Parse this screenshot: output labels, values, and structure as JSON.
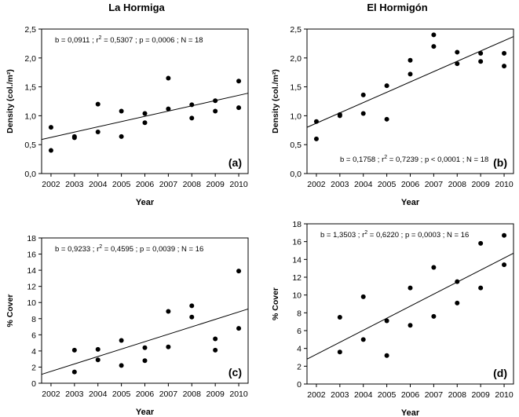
{
  "headers": {
    "left": "La Hormiga",
    "right": "El Hormigón"
  },
  "chart_data": [
    {
      "id": "a",
      "type": "scatter",
      "panel_label": "(a)",
      "xlabel": "Year",
      "ylabel": "Density (col./m²)",
      "xlim": [
        2001.6,
        2010.4
      ],
      "ylim": [
        0,
        2.5
      ],
      "xticks": [
        2002,
        2003,
        2004,
        2005,
        2006,
        2007,
        2008,
        2009,
        2010
      ],
      "yticks": [
        0,
        0.5,
        1.0,
        1.5,
        2.0,
        2.5
      ],
      "ytick_labels": [
        "0,0",
        "0,5",
        "1,0",
        "1,5",
        "2,0",
        "2,5"
      ],
      "annotation": {
        "pre": "b = 0,0911 ; r",
        "post": " = 0,5307 ; p = 0,0006 ; N = 18"
      },
      "annotation_pos": "top-left",
      "points": [
        [
          2002,
          0.8
        ],
        [
          2002,
          0.4
        ],
        [
          2003,
          0.64
        ],
        [
          2003,
          0.62
        ],
        [
          2004,
          1.2
        ],
        [
          2004,
          0.72
        ],
        [
          2005,
          1.08
        ],
        [
          2005,
          0.64
        ],
        [
          2006,
          1.04
        ],
        [
          2006,
          0.88
        ],
        [
          2007,
          1.65
        ],
        [
          2007,
          1.12
        ],
        [
          2008,
          1.19
        ],
        [
          2008,
          0.96
        ],
        [
          2009,
          1.26
        ],
        [
          2009,
          1.08
        ],
        [
          2010,
          1.6
        ],
        [
          2010,
          1.14
        ]
      ],
      "fit": {
        "x": [
          2001.6,
          2010.4
        ],
        "y": [
          0.59,
          1.39
        ]
      }
    },
    {
      "id": "b",
      "type": "scatter",
      "panel_label": "(b)",
      "xlabel": "Year",
      "ylabel": "Density (col./m²)",
      "xlim": [
        2001.6,
        2010.4
      ],
      "ylim": [
        0,
        2.5
      ],
      "xticks": [
        2002,
        2003,
        2004,
        2005,
        2006,
        2007,
        2008,
        2009,
        2010
      ],
      "yticks": [
        0,
        0.5,
        1.0,
        1.5,
        2.0,
        2.5
      ],
      "ytick_labels": [
        "0,0",
        "0,5",
        "1,0",
        "1,5",
        "2,0",
        "2,5"
      ],
      "annotation": {
        "pre": "b = 0,1758 ; r",
        "post": " = 0,7239 ; p < 0,0001 ; N = 18"
      },
      "annotation_pos": "bottom",
      "points": [
        [
          2002,
          0.9
        ],
        [
          2002,
          0.6
        ],
        [
          2003,
          1.02
        ],
        [
          2003,
          1.0
        ],
        [
          2004,
          1.36
        ],
        [
          2004,
          1.04
        ],
        [
          2005,
          1.52
        ],
        [
          2005,
          0.94
        ],
        [
          2006,
          1.96
        ],
        [
          2006,
          1.72
        ],
        [
          2007,
          2.4
        ],
        [
          2007,
          2.2
        ],
        [
          2008,
          2.1
        ],
        [
          2008,
          1.9
        ],
        [
          2009,
          2.08
        ],
        [
          2009,
          1.94
        ],
        [
          2010,
          2.08
        ],
        [
          2010,
          1.86
        ]
      ],
      "fit": {
        "x": [
          2001.6,
          2010.4
        ],
        "y": [
          0.8,
          2.37
        ]
      }
    },
    {
      "id": "c",
      "type": "scatter",
      "panel_label": "(c)",
      "xlabel": "Year",
      "ylabel": "% Cover",
      "xlim": [
        2001.6,
        2010.4
      ],
      "ylim": [
        0,
        18
      ],
      "xticks": [
        2002,
        2003,
        2004,
        2005,
        2006,
        2007,
        2008,
        2009,
        2010
      ],
      "yticks": [
        0,
        2,
        4,
        6,
        8,
        10,
        12,
        14,
        16,
        18
      ],
      "ytick_labels": [
        "0",
        "2",
        "4",
        "6",
        "8",
        "10",
        "12",
        "14",
        "16",
        "18"
      ],
      "annotation": {
        "pre": "b = 0,9233 ; r",
        "post": " = 0,4595 ; p = 0,0039 ; N = 16"
      },
      "annotation_pos": "top-left",
      "points": [
        [
          2003,
          4.1
        ],
        [
          2003,
          1.4
        ],
        [
          2004,
          4.2
        ],
        [
          2004,
          2.9
        ],
        [
          2005,
          5.3
        ],
        [
          2005,
          2.2
        ],
        [
          2006,
          4.4
        ],
        [
          2006,
          2.8
        ],
        [
          2007,
          8.9
        ],
        [
          2007,
          4.5
        ],
        [
          2008,
          9.6
        ],
        [
          2008,
          8.2
        ],
        [
          2009,
          5.5
        ],
        [
          2009,
          4.1
        ],
        [
          2010,
          13.9
        ],
        [
          2010,
          6.8
        ]
      ],
      "fit": {
        "x": [
          2001.6,
          2010.4
        ],
        "y": [
          1.1,
          9.2
        ]
      }
    },
    {
      "id": "d",
      "type": "scatter",
      "panel_label": "(d)",
      "xlabel": "Year",
      "ylabel": "% Cover",
      "xlim": [
        2001.6,
        2010.4
      ],
      "ylim": [
        0,
        18
      ],
      "xticks": [
        2002,
        2003,
        2004,
        2005,
        2006,
        2007,
        2008,
        2009,
        2010
      ],
      "yticks": [
        0,
        2,
        4,
        6,
        8,
        10,
        12,
        14,
        16,
        18
      ],
      "ytick_labels": [
        "0",
        "2",
        "4",
        "6",
        "8",
        "10",
        "12",
        "14",
        "16",
        "18"
      ],
      "annotation": {
        "pre": "b = 1,3503 ; r",
        "post": " = 0,6220 ; p = 0,0003 ; N = 16"
      },
      "annotation_pos": "top-left",
      "points": [
        [
          2003,
          7.5
        ],
        [
          2003,
          3.6
        ],
        [
          2004,
          9.8
        ],
        [
          2004,
          5.0
        ],
        [
          2005,
          7.1
        ],
        [
          2005,
          3.2
        ],
        [
          2006,
          10.8
        ],
        [
          2006,
          6.6
        ],
        [
          2007,
          13.1
        ],
        [
          2007,
          7.6
        ],
        [
          2008,
          11.5
        ],
        [
          2008,
          9.1
        ],
        [
          2009,
          15.8
        ],
        [
          2009,
          10.8
        ],
        [
          2010,
          16.7
        ],
        [
          2010,
          13.4
        ]
      ],
      "fit": {
        "x": [
          2001.6,
          2010.4
        ],
        "y": [
          2.8,
          14.7
        ]
      }
    }
  ]
}
